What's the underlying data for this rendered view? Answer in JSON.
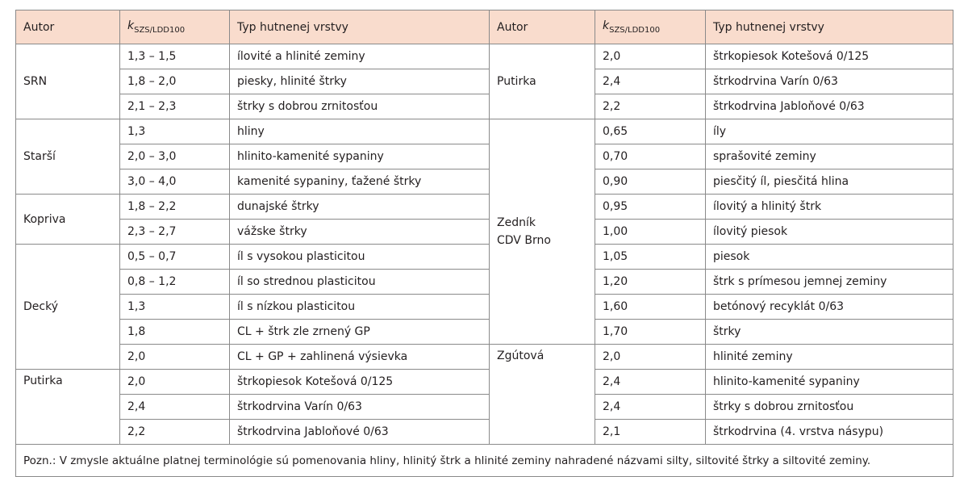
{
  "table": {
    "headers": {
      "autor": "Autor",
      "k_main": "k",
      "k_sub": "SZS/LDD100",
      "typ": "Typ hutnenej vrstvy"
    },
    "left": [
      {
        "autor": "SRN",
        "rows": [
          {
            "k": "1,3 – 1,5",
            "typ": "ílovité a hlinité zeminy"
          },
          {
            "k": "1,8 – 2,0",
            "typ": "piesky, hlinité štrky"
          },
          {
            "k": "2,1 – 2,3",
            "typ": "štrky s dobrou zrnitosťou"
          }
        ]
      },
      {
        "autor": "Starší",
        "rows": [
          {
            "k": "1,3",
            "typ": "hliny"
          },
          {
            "k": "2,0 – 3,0",
            "typ": "hlinito-kamenité sypaniny"
          },
          {
            "k": "3,0 – 4,0",
            "typ": "kamenité sypaniny, ťažené štrky"
          }
        ]
      },
      {
        "autor": "Kopriva",
        "rows": [
          {
            "k": "1,8 – 2,2",
            "typ": "dunajské štrky"
          },
          {
            "k": "2,3 – 2,7",
            "typ": "vážske štrky"
          }
        ]
      },
      {
        "autor": "Decký",
        "rows": [
          {
            "k": "0,5 – 0,7",
            "typ": "íl s vysokou plasticitou"
          },
          {
            "k": "0,8 – 1,2",
            "typ": "íl so strednou plasticitou"
          },
          {
            "k": "1,3",
            "typ": "íl s nízkou plasticitou"
          },
          {
            "k": "1,8",
            "typ": "CL + štrk zle zrnený GP"
          },
          {
            "k": "2,0",
            "typ": "CL + GP + zahlinená výsievka"
          }
        ]
      },
      {
        "autor": "Putirka",
        "rows": [
          {
            "k": "2,0",
            "typ": "štrkopiesok Kotešová 0/125"
          },
          {
            "k": "2,4",
            "typ": "štrkodrvina Varín 0/63"
          },
          {
            "k": "2,2",
            "typ": "štrkodrvina Jabloňové 0/63"
          }
        ]
      }
    ],
    "right": [
      {
        "autor": "Putirka",
        "rows": [
          {
            "k": "2,0",
            "typ": "štrkopiesok Kotešová 0/125"
          },
          {
            "k": "2,4",
            "typ": "štrkodrvina Varín 0/63"
          },
          {
            "k": "2,2",
            "typ": "štrkodrvina Jabloňové 0/63"
          }
        ]
      },
      {
        "autor_lines": [
          "Zedník",
          "CDV Brno"
        ],
        "rows": [
          {
            "k": "0,65",
            "typ": "íly"
          },
          {
            "k": "0,70",
            "typ": "sprašovité zeminy"
          },
          {
            "k": "0,90",
            "typ": "piesčitý íl, piesčitá hlina"
          },
          {
            "k": "0,95",
            "typ": "ílovitý a hlinitý štrk"
          },
          {
            "k": "1,00",
            "typ": "ílovitý piesok"
          },
          {
            "k": "1,05",
            "typ": "piesok"
          },
          {
            "k": "1,20",
            "typ": "štrk s prímesou jemnej zeminy"
          },
          {
            "k": "1,60",
            "typ": "betónový recyklát 0/63"
          },
          {
            "k": "1,70",
            "typ": "štrky"
          }
        ]
      },
      {
        "autor": "Zgútová",
        "rows": [
          {
            "k": "2,0",
            "typ": "hlinité zeminy"
          },
          {
            "k": "2,4",
            "typ": "hlinito-kamenité sypaniny"
          },
          {
            "k": "2,4",
            "typ": "štrky s dobrou zrnitosťou"
          },
          {
            "k": "2,1",
            "typ": "štrkodrvina (4. vrstva násypu)"
          }
        ]
      }
    ],
    "note": "Pozn.: V zmysle aktuálne platnej terminológie sú pomenovania hliny, hlinitý štrk a hlinité zeminy nahradené názvami silty, siltovité štrky a siltovité zeminy."
  }
}
